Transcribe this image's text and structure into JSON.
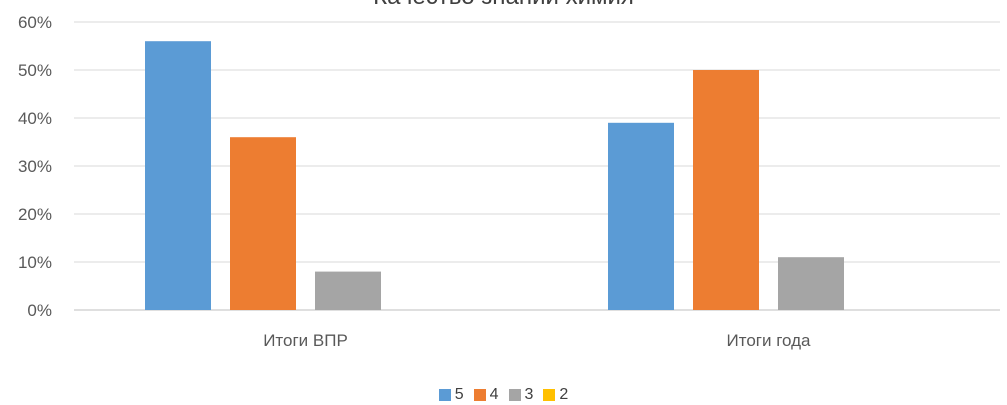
{
  "chart_data": {
    "type": "bar",
    "title": "Качество знаний химия",
    "categories": [
      "Итоги ВПР",
      "Итоги года"
    ],
    "series": [
      {
        "name": "5",
        "values": [
          56,
          39
        ],
        "color": "#5B9BD5"
      },
      {
        "name": "4",
        "values": [
          36,
          50
        ],
        "color": "#ED7D31"
      },
      {
        "name": "3",
        "values": [
          8,
          11
        ],
        "color": "#A5A5A5"
      },
      {
        "name": "2",
        "values": [
          0,
          0
        ],
        "color": "#FFC000"
      }
    ],
    "ylim": [
      0,
      60
    ],
    "yticks": [
      0,
      10,
      20,
      30,
      40,
      50,
      60
    ],
    "ytick_labels": [
      "0%",
      "10%",
      "20%",
      "30%",
      "40%",
      "50%",
      "60%"
    ],
    "grid": true,
    "legend_position": "bottom"
  }
}
